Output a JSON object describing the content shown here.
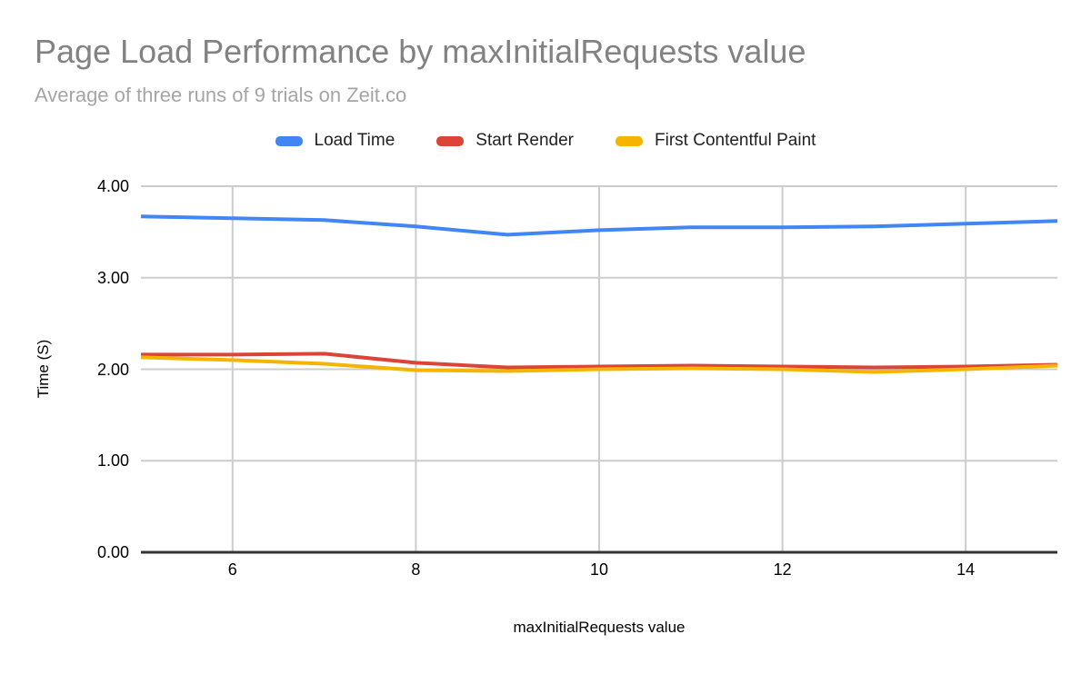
{
  "chart_data": {
    "type": "line",
    "title": "Page Load Performance by maxInitialRequests value",
    "subtitle": "Average of three runs of 9 trials on Zeit.co",
    "xlabel": "maxInitialRequests value",
    "ylabel": "Time (S)",
    "x": [
      5,
      6,
      7,
      8,
      9,
      10,
      11,
      12,
      13,
      14,
      15
    ],
    "series": [
      {
        "name": "Load Time",
        "color": "#4285f4",
        "values": [
          3.67,
          3.65,
          3.63,
          3.56,
          3.47,
          3.52,
          3.55,
          3.55,
          3.56,
          3.59,
          3.62
        ]
      },
      {
        "name": "Start Render",
        "color": "#db4437",
        "values": [
          2.16,
          2.16,
          2.17,
          2.07,
          2.02,
          2.03,
          2.04,
          2.03,
          2.02,
          2.03,
          2.05
        ]
      },
      {
        "name": "First Contentful Paint",
        "color": "#f4b400",
        "values": [
          2.13,
          2.1,
          2.06,
          1.99,
          1.98,
          2.0,
          2.01,
          2.0,
          1.97,
          2.0,
          2.04
        ]
      }
    ],
    "xlim": [
      5,
      15
    ],
    "ylim": [
      0,
      4
    ],
    "x_ticks": [
      "6",
      "8",
      "10",
      "12",
      "14"
    ],
    "y_ticks": [
      "0.00",
      "1.00",
      "2.00",
      "3.00",
      "4.00"
    ],
    "grid": true,
    "legend_position": "top",
    "style_colors": {
      "title_text": "#828282",
      "subtitle_text": "#a5a5a5",
      "legend_text": "#212121",
      "tick_text": "#000000",
      "gridline": "#cccccc",
      "axis_baseline": "#333333",
      "background": "#ffffff"
    }
  }
}
